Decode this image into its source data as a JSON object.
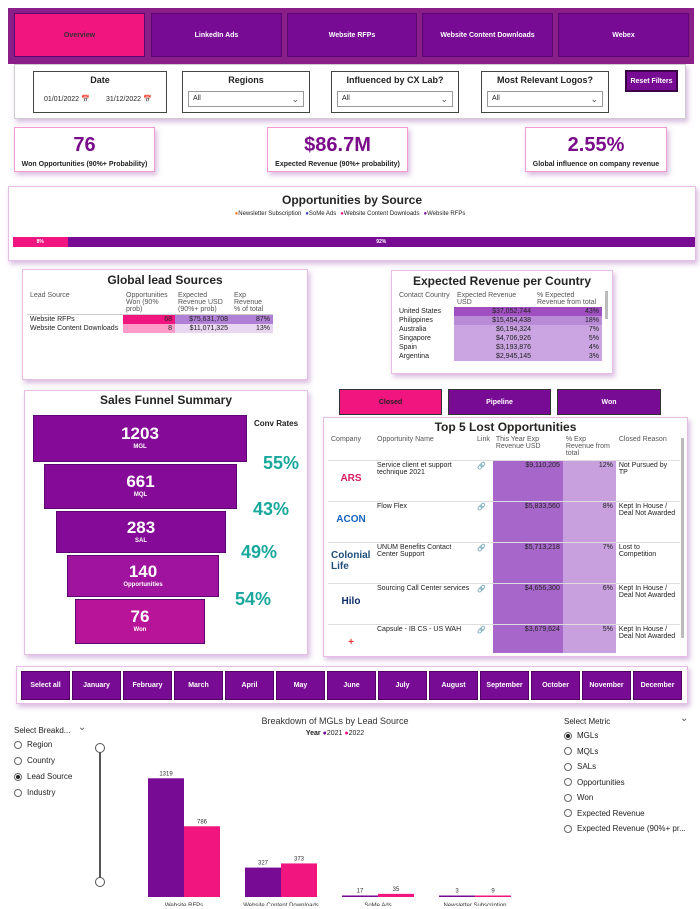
{
  "nav": {
    "tabs": [
      {
        "label": "Overview",
        "active": true
      },
      {
        "label": "LinkedIn Ads"
      },
      {
        "label": "Website RFPs"
      },
      {
        "label": "Website Content Downloads"
      },
      {
        "label": "Webex"
      }
    ]
  },
  "filters": {
    "date": {
      "label": "Date",
      "start": "01/01/2022",
      "end": "31/12/2022"
    },
    "regions": {
      "label": "Regions",
      "value": "All"
    },
    "influenced": {
      "label": "Influenced by CX Lab?",
      "value": "All"
    },
    "logos": {
      "label": "Most Relevant Logos?",
      "value": "All"
    },
    "reset_label": "Reset Filters"
  },
  "kpis": [
    {
      "value": "76",
      "label": "Won Opportunities (90%+ Probability)"
    },
    {
      "value": "$86.7M",
      "label": "Expected Revenue (90%+ probability)"
    },
    {
      "value": "2.55%",
      "label": "Global influence on company revenue"
    }
  ],
  "opps_by_source": {
    "title": "Opportunities by Source",
    "legend": [
      {
        "name": "Newsletter Subscription",
        "color": "#ff7a1a"
      },
      {
        "name": "SoMe Ads",
        "color": "#3b3fbf"
      },
      {
        "name": "Website Content Downloads",
        "color": "#f0157f"
      },
      {
        "name": "Website RFPs",
        "color": "#770b94"
      }
    ],
    "segments": [
      {
        "label": "8%",
        "value": 8,
        "color": "#f0157f"
      },
      {
        "label": "92%",
        "value": 92,
        "color": "#770b94"
      }
    ]
  },
  "lead_sources": {
    "title": "Global lead Sources",
    "headers": [
      "Lead Source",
      "Opportunities Won (90% prob)",
      "Expected Revenue USD (90%+ prob)",
      "Exp Revenue % of total"
    ],
    "rows": [
      {
        "name": "Website RFPs",
        "won": "68",
        "rev": "$75,631,708",
        "pct": "87%"
      },
      {
        "name": "Website Content Downloads",
        "won": "8",
        "rev": "$11,071,325",
        "pct": "13%"
      }
    ]
  },
  "rev_country": {
    "title": "Expected Revenue per Country",
    "headers": [
      "Contact Country",
      "Expected Revenue USD",
      "% Expected Revenue from total"
    ],
    "rows": [
      {
        "country": "United States",
        "rev": "$37,052,744",
        "pct": "43%"
      },
      {
        "country": "Philippines",
        "rev": "$15,454,438",
        "pct": "18%"
      },
      {
        "country": "Australia",
        "rev": "$6,194,324",
        "pct": "7%"
      },
      {
        "country": "Singapore",
        "rev": "$4,706,926",
        "pct": "5%"
      },
      {
        "country": "Spain",
        "rev": "$3,193,876",
        "pct": "4%"
      },
      {
        "country": "Argentina",
        "rev": "$2,945,145",
        "pct": "3%"
      }
    ]
  },
  "funnel": {
    "title": "Sales Funnel Summary",
    "conv_title": "Conv Rates",
    "stages": [
      {
        "value": "1203",
        "label": "MGL"
      },
      {
        "value": "661",
        "label": "MQL"
      },
      {
        "value": "283",
        "label": "SAL"
      },
      {
        "value": "140",
        "label": "Opportunities"
      },
      {
        "value": "76",
        "label": "Won"
      }
    ],
    "rates": [
      "55%",
      "43%",
      "49%",
      "54%"
    ]
  },
  "status_buttons": [
    "Closed",
    "Pipeline",
    "Won"
  ],
  "lost": {
    "title": "Top 5 Lost Opportunities",
    "headers": [
      "Company",
      "Opportunity Name",
      "Link",
      "This Year Exp Revenue USD",
      "% Exp Revenue from total",
      "Closed Reason"
    ],
    "rows": [
      {
        "logo": "ARS",
        "logo_color": "#d81b60",
        "name": "Service client et support technique 2021",
        "rev": "$9,110,205",
        "pct": "12%",
        "reason": "Not Pursued by TP"
      },
      {
        "logo": "ACON",
        "logo_color": "#1565c0",
        "name": "Flow Flex",
        "rev": "$5,833,560",
        "pct": "8%",
        "reason": "Kept In House / Deal Not Awarded"
      },
      {
        "logo": "Colonial Life",
        "logo_color": "#1f4e79",
        "name": "UNUM Benefits Contact Center Support",
        "rev": "$5,713,218",
        "pct": "7%",
        "reason": "Lost to Competition"
      },
      {
        "logo": "Hilo",
        "logo_color": "#0d2c6b",
        "name": "Sourcing Call Center services",
        "rev": "$4,656,300",
        "pct": "6%",
        "reason": "Kept In House / Deal Not Awarded"
      },
      {
        "logo": "+",
        "logo_color": "#e53935",
        "name": "Capsule - IB CS - US WAH",
        "rev": "$3,679,624",
        "pct": "5%",
        "reason": "Kept In House / Deal Not Awarded"
      }
    ]
  },
  "months": [
    "Select all",
    "January",
    "February",
    "March",
    "April",
    "May",
    "June",
    "July",
    "August",
    "September",
    "October",
    "November",
    "December"
  ],
  "breakdown_select": {
    "title": "Select Breakd...",
    "options": [
      {
        "label": "Region",
        "selected": false
      },
      {
        "label": "Country",
        "selected": false
      },
      {
        "label": "Lead Source",
        "selected": true
      },
      {
        "label": "Industry",
        "selected": false
      }
    ]
  },
  "metric_select": {
    "title": "Select Metric",
    "options": [
      {
        "label": "MGLs",
        "selected": true
      },
      {
        "label": "MQLs",
        "selected": false
      },
      {
        "label": "SALs",
        "selected": false
      },
      {
        "label": "Opportunities",
        "selected": false
      },
      {
        "label": "Won",
        "selected": false
      },
      {
        "label": "Expected Revenue",
        "selected": false
      },
      {
        "label": "Expected Revenue (90%+ pr...",
        "selected": false
      }
    ]
  },
  "chart_data": {
    "type": "bar",
    "title": "Breakdown of MGLs by Lead Source",
    "legend_title": "Year",
    "categories": [
      "Website RFPs",
      "Website Content Downloads",
      "SoMe Ads",
      "Newsletter Subscription"
    ],
    "series": [
      {
        "name": "2021",
        "color": "#770b94",
        "values": [
          1319,
          327,
          17,
          3
        ]
      },
      {
        "name": "2022",
        "color": "#f0157f",
        "values": [
          786,
          373,
          35,
          9
        ]
      }
    ],
    "ylim": [
      0,
      1400
    ]
  }
}
